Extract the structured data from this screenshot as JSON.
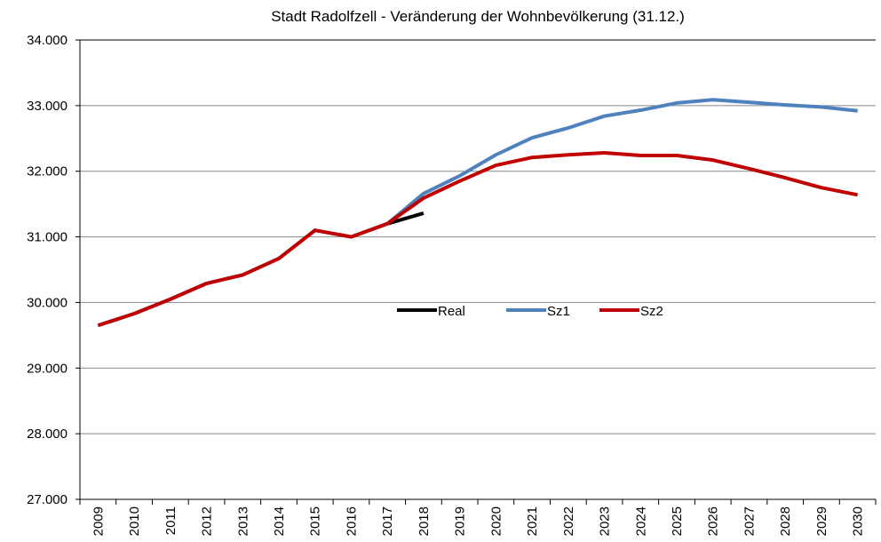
{
  "chart_data": {
    "type": "line",
    "title": "Stadt Radolfzell - Veränderung der Wohnbevölkerung (31.12.)",
    "categories": [
      "2009",
      "2010",
      "2011",
      "2012",
      "2013",
      "2014",
      "2015",
      "2016",
      "2017",
      "2018",
      "2019",
      "2020",
      "2021",
      "2022",
      "2023",
      "2024",
      "2025",
      "2026",
      "2027",
      "2028",
      "2029",
      "2030"
    ],
    "series": [
      {
        "name": "Real",
        "color": "#000000",
        "values": [
          null,
          null,
          null,
          null,
          null,
          null,
          null,
          null,
          31200,
          31360,
          null,
          null,
          null,
          null,
          null,
          null,
          null,
          null,
          null,
          null,
          null,
          null
        ]
      },
      {
        "name": "Sz1",
        "color": "#4f81bd",
        "values": [
          29650,
          29830,
          30050,
          30290,
          30420,
          30670,
          31100,
          31000,
          31200,
          31660,
          31930,
          32250,
          32510,
          32660,
          32840,
          32930,
          33040,
          33090,
          33050,
          33010,
          32980,
          32920
        ]
      },
      {
        "name": "Sz2",
        "color": "#c00000",
        "values": [
          29650,
          29830,
          30050,
          30290,
          30420,
          30670,
          31100,
          31000,
          31200,
          31590,
          31850,
          32090,
          32210,
          32250,
          32280,
          32240,
          32240,
          32170,
          32040,
          31900,
          31750,
          31640
        ]
      }
    ],
    "ylim": [
      27000,
      34000
    ],
    "yticks": [
      {
        "value": 27000,
        "label": "27.000"
      },
      {
        "value": 28000,
        "label": "28.000"
      },
      {
        "value": 29000,
        "label": "29.000"
      },
      {
        "value": 30000,
        "label": "30.000"
      },
      {
        "value": 31000,
        "label": "31.000"
      },
      {
        "value": 32000,
        "label": "32.000"
      },
      {
        "value": 33000,
        "label": "33.000"
      },
      {
        "value": 34000,
        "label": "34.000"
      }
    ],
    "grid": true,
    "legend_position": "center"
  }
}
